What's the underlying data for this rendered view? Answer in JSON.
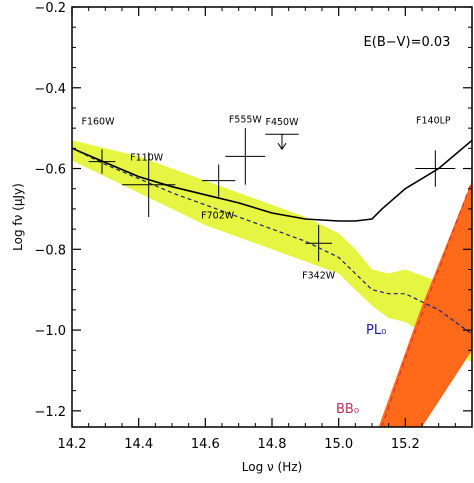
{
  "chart_data": {
    "type": "line",
    "title": "",
    "annotation": "E(B−V)=0.03",
    "xlabel": "Log ν (Hz)",
    "ylabel": "Log fν (μJy)",
    "xlim": [
      14.2,
      15.4
    ],
    "ylim": [
      -1.24,
      -0.2
    ],
    "x_ticks": [
      14.2,
      14.4,
      14.6,
      14.8,
      15.0,
      15.2
    ],
    "x_tick_labels": [
      "14.2",
      "14.4",
      "14.6",
      "14.8",
      "15.0",
      "15.2"
    ],
    "y_ticks": [
      -0.2,
      -0.4,
      -0.6,
      -0.8,
      -1.0,
      -1.2
    ],
    "y_tick_labels": [
      "−0.2",
      "−0.4",
      "−0.6",
      "−0.8",
      "−1.0",
      "−1.2"
    ],
    "colors": {
      "black_line": "#000000",
      "blue_dashed": "#1a237e",
      "yellow_band": "#e6f542",
      "orange_band": "#ff6a1a",
      "red_dashed": "#e03030",
      "pl_label": "#1a1aaa",
      "bb_label": "#c0305a"
    },
    "series": [
      {
        "label": "",
        "style": "solid-black",
        "x": [
          14.2,
          14.3,
          14.4,
          14.5,
          14.6,
          14.7,
          14.8,
          14.9,
          15.0,
          15.05,
          15.1,
          15.13,
          15.2,
          15.3,
          15.4
        ],
        "y": [
          -0.55,
          -0.585,
          -0.62,
          -0.645,
          -0.665,
          -0.685,
          -0.71,
          -0.725,
          -0.73,
          -0.73,
          -0.725,
          -0.7,
          -0.65,
          -0.6,
          -0.53
        ]
      },
      {
        "label": "PL0",
        "style": "dashed-blue",
        "x": [
          14.2,
          14.3,
          14.4,
          14.5,
          14.6,
          14.7,
          14.8,
          14.9,
          15.0,
          15.05,
          15.1,
          15.15,
          15.2,
          15.3,
          15.4
        ],
        "y": [
          -0.55,
          -0.59,
          -0.625,
          -0.66,
          -0.69,
          -0.72,
          -0.75,
          -0.78,
          -0.82,
          -0.86,
          -0.9,
          -0.91,
          -0.91,
          -0.95,
          -1.01
        ]
      },
      {
        "label": "BB0",
        "style": "dashed-red",
        "x": [
          15.13,
          15.2,
          15.3,
          15.4
        ],
        "y": [
          -1.24,
          -1.07,
          -0.85,
          -0.63
        ]
      }
    ],
    "bands": [
      {
        "label": "",
        "color": "yellow",
        "x": [
          14.2,
          14.3,
          14.4,
          14.5,
          14.6,
          14.7,
          14.8,
          14.9,
          15.0,
          15.05,
          15.1,
          15.15,
          15.2,
          15.3,
          15.4
        ],
        "upper": [
          -0.53,
          -0.55,
          -0.57,
          -0.6,
          -0.63,
          -0.66,
          -0.69,
          -0.72,
          -0.76,
          -0.8,
          -0.85,
          -0.86,
          -0.85,
          -0.88,
          -0.92
        ],
        "lower": [
          -0.58,
          -0.62,
          -0.66,
          -0.7,
          -0.74,
          -0.77,
          -0.8,
          -0.83,
          -0.86,
          -0.9,
          -0.94,
          -0.97,
          -0.98,
          -1.03,
          -1.08
        ]
      },
      {
        "label": "",
        "color": "orange",
        "x": [
          15.12,
          15.25,
          15.4,
          15.4,
          15.25,
          15.12
        ],
        "y": [
          -1.24,
          -0.94,
          -0.63,
          -1.05,
          -1.24,
          -1.24
        ],
        "polygon": true
      }
    ],
    "points": [
      {
        "label": "F160W",
        "x": 14.29,
        "y": -0.583,
        "xerr": 0.04,
        "yerr": 0.03
      },
      {
        "label": "F110W",
        "x": 14.43,
        "y": -0.64,
        "xerr": 0.08,
        "yerr": 0.08
      },
      {
        "label": "F555W",
        "x": 14.72,
        "y": -0.57,
        "xerr": 0.06,
        "yerr": 0.07
      },
      {
        "label": "F702W",
        "x": 14.64,
        "y": -0.63,
        "xerr": 0.05,
        "yerr": 0.04
      },
      {
        "label": "F342W",
        "x": 14.94,
        "y": -0.785,
        "xerr": 0.04,
        "yerr": 0.045
      },
      {
        "label": "F140LP",
        "x": 15.29,
        "y": -0.6,
        "xerr": 0.06,
        "yerr": 0.045
      }
    ],
    "upper_limits": [
      {
        "label": "F450W",
        "x": 14.83,
        "y": -0.515,
        "xerr": 0.05
      }
    ],
    "series_labels": [
      "PL₀",
      "BB₀"
    ],
    "grid": false,
    "legend": "none"
  }
}
